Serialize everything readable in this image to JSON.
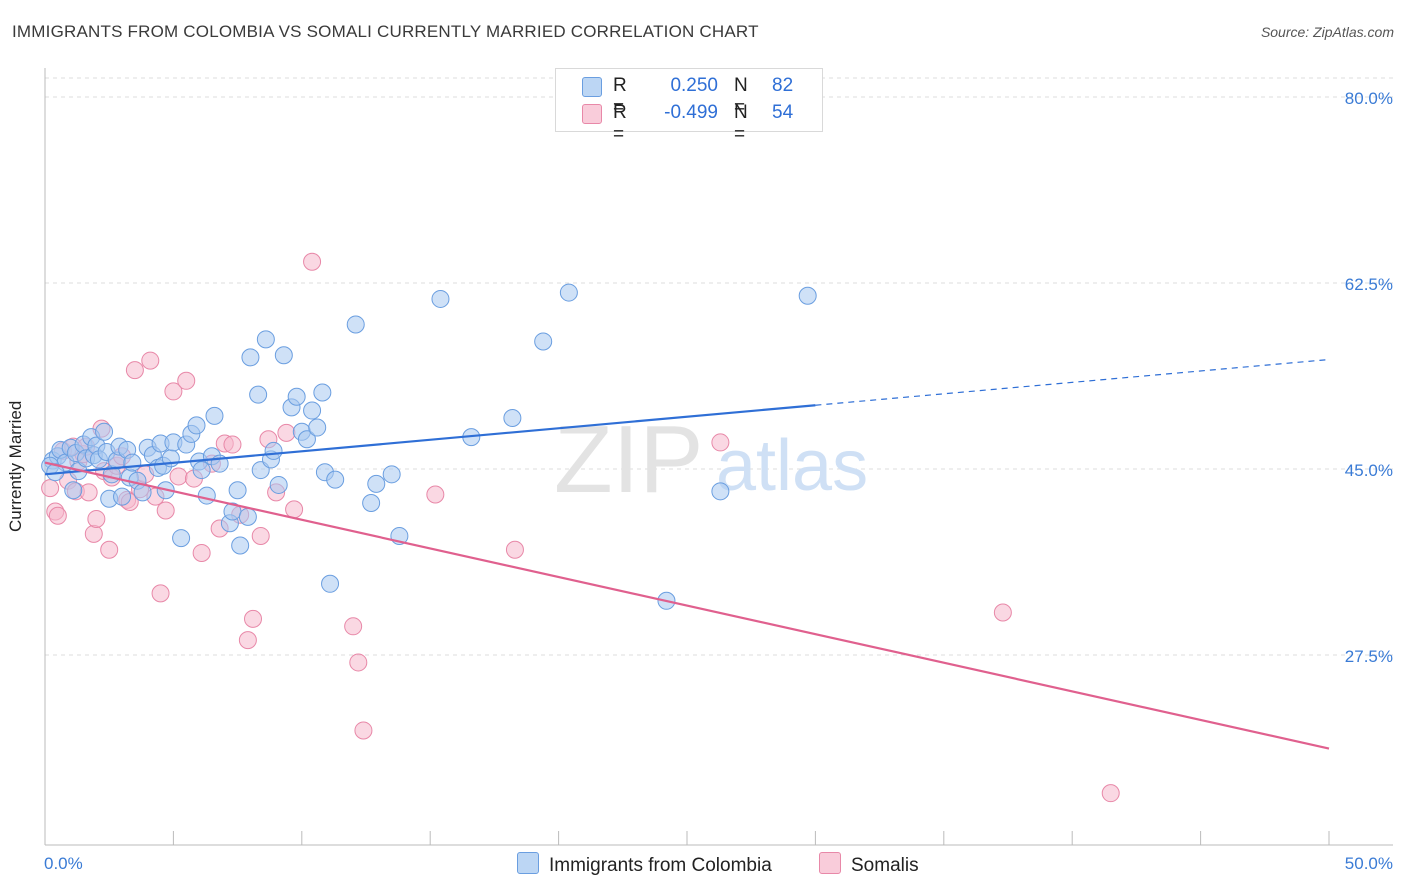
{
  "header": {
    "title": "IMMIGRANTS FROM COLOMBIA VS SOMALI CURRENTLY MARRIED CORRELATION CHART",
    "source": "Source: ZipAtlas.com"
  },
  "watermark": {
    "zip": "ZIP",
    "atlas": "atlas"
  },
  "stats_legend": {
    "rows": [
      {
        "r_label": "R =",
        "r_value": "0.250",
        "n_label": "N =",
        "n_value": "82",
        "color": "#a8c8f0"
      },
      {
        "r_label": "R =",
        "r_value": "-0.499",
        "n_label": "N =",
        "n_value": "54",
        "color": "#f6b8cc"
      }
    ]
  },
  "series_legend": [
    {
      "label": "Immigrants from Colombia",
      "color": "#a8c8f0"
    },
    {
      "label": "Somalis",
      "color": "#f6b8cc"
    }
  ],
  "colors": {
    "blue_fill": "#a8c8f0",
    "blue_stroke": "#6a9ee0",
    "blue_line": "#2f6fd6",
    "pink_fill": "#f6b8cc",
    "pink_stroke": "#e888a8",
    "pink_line": "#e0608e",
    "tick_text": "#3a7bd5",
    "grid": "#dcdcdc"
  },
  "chart_data": {
    "type": "scatter",
    "title": "IMMIGRANTS FROM COLOMBIA VS SOMALI CURRENTLY MARRIED CORRELATION CHART",
    "xlabel": "",
    "ylabel": "Currently Married",
    "xlim": [
      0,
      50
    ],
    "ylim": [
      10,
      82.5
    ],
    "x_tick_labels": [
      "0.0%",
      "50.0%"
    ],
    "y_ticks": [
      27.5,
      45.0,
      62.5,
      80.0
    ],
    "y_tick_labels": [
      "27.5%",
      "45.0%",
      "62.5%",
      "80.0%"
    ],
    "grid": true,
    "legend": "top-center",
    "series": [
      {
        "name": "Immigrants from Colombia",
        "r": 0.25,
        "n": 82,
        "trend": {
          "x0": 0,
          "y0": 44.5,
          "x1": 30,
          "y1": 51.0,
          "dash_x1": 50,
          "dash_y1": 55.3
        },
        "points": [
          [
            0.3,
            45.8
          ],
          [
            0.5,
            46.2
          ],
          [
            0.6,
            46.8
          ],
          [
            0.8,
            45.6
          ],
          [
            1.0,
            47.0
          ],
          [
            1.1,
            43.0
          ],
          [
            1.2,
            46.5
          ],
          [
            1.3,
            44.8
          ],
          [
            1.5,
            47.3
          ],
          [
            1.6,
            46.0
          ],
          [
            1.8,
            48.0
          ],
          [
            1.9,
            46.3
          ],
          [
            2.0,
            47.2
          ],
          [
            2.1,
            45.9
          ],
          [
            2.3,
            48.5
          ],
          [
            2.4,
            46.6
          ],
          [
            2.5,
            42.2
          ],
          [
            2.6,
            44.5
          ],
          [
            2.8,
            45.8
          ],
          [
            2.9,
            47.1
          ],
          [
            3.0,
            42.4
          ],
          [
            3.2,
            46.8
          ],
          [
            3.3,
            44.2
          ],
          [
            3.4,
            45.6
          ],
          [
            3.6,
            43.9
          ],
          [
            3.8,
            42.8
          ],
          [
            4.0,
            47.0
          ],
          [
            4.2,
            46.3
          ],
          [
            4.4,
            45.1
          ],
          [
            4.5,
            47.4
          ],
          [
            4.6,
            45.3
          ],
          [
            4.7,
            43.0
          ],
          [
            4.9,
            46.0
          ],
          [
            5.0,
            47.5
          ],
          [
            5.3,
            38.5
          ],
          [
            5.5,
            47.3
          ],
          [
            5.7,
            48.3
          ],
          [
            5.9,
            49.1
          ],
          [
            6.0,
            45.7
          ],
          [
            6.1,
            44.9
          ],
          [
            6.3,
            42.5
          ],
          [
            6.5,
            46.2
          ],
          [
            6.6,
            50.0
          ],
          [
            6.8,
            45.5
          ],
          [
            7.2,
            39.9
          ],
          [
            7.3,
            41.0
          ],
          [
            7.5,
            43.0
          ],
          [
            7.6,
            37.8
          ],
          [
            7.9,
            40.5
          ],
          [
            8.0,
            55.5
          ],
          [
            8.3,
            52.0
          ],
          [
            8.4,
            44.9
          ],
          [
            8.6,
            57.2
          ],
          [
            8.8,
            45.9
          ],
          [
            9.1,
            43.5
          ],
          [
            9.3,
            55.7
          ],
          [
            9.6,
            50.8
          ],
          [
            9.8,
            51.8
          ],
          [
            10.0,
            48.5
          ],
          [
            10.2,
            47.8
          ],
          [
            10.4,
            50.5
          ],
          [
            10.6,
            48.9
          ],
          [
            10.8,
            52.2
          ],
          [
            10.9,
            44.7
          ],
          [
            11.1,
            34.2
          ],
          [
            11.3,
            44.0
          ],
          [
            12.1,
            58.6
          ],
          [
            12.7,
            41.8
          ],
          [
            12.9,
            43.6
          ],
          [
            13.5,
            44.5
          ],
          [
            13.8,
            38.7
          ],
          [
            15.4,
            61.0
          ],
          [
            16.6,
            48.0
          ],
          [
            18.2,
            49.8
          ],
          [
            19.4,
            57.0
          ],
          [
            20.4,
            61.6
          ],
          [
            24.2,
            32.6
          ],
          [
            26.3,
            42.9
          ],
          [
            29.7,
            61.3
          ],
          [
            0.2,
            45.3
          ],
          [
            0.4,
            44.7
          ],
          [
            8.9,
            46.7
          ]
        ]
      },
      {
        "name": "Somalis",
        "r": -0.499,
        "n": 54,
        "trend": {
          "x0": 0,
          "y0": 45.6,
          "x1": 50,
          "y1": 18.7
        },
        "points": [
          [
            0.2,
            43.2
          ],
          [
            0.4,
            41.0
          ],
          [
            0.5,
            40.6
          ],
          [
            0.7,
            46.7
          ],
          [
            0.9,
            43.9
          ],
          [
            1.1,
            47.1
          ],
          [
            1.2,
            42.9
          ],
          [
            1.3,
            45.7
          ],
          [
            1.5,
            46.4
          ],
          [
            1.6,
            47.1
          ],
          [
            1.7,
            42.8
          ],
          [
            1.9,
            38.9
          ],
          [
            2.0,
            40.3
          ],
          [
            2.2,
            48.8
          ],
          [
            2.3,
            44.8
          ],
          [
            2.5,
            37.4
          ],
          [
            2.6,
            44.2
          ],
          [
            2.8,
            45.3
          ],
          [
            3.0,
            46.2
          ],
          [
            3.2,
            42.1
          ],
          [
            3.3,
            41.9
          ],
          [
            3.5,
            54.3
          ],
          [
            3.7,
            43.1
          ],
          [
            3.9,
            44.5
          ],
          [
            4.1,
            55.2
          ],
          [
            4.3,
            42.4
          ],
          [
            4.5,
            33.3
          ],
          [
            4.7,
            41.1
          ],
          [
            5.0,
            52.3
          ],
          [
            5.2,
            44.3
          ],
          [
            5.5,
            53.3
          ],
          [
            5.8,
            44.1
          ],
          [
            6.1,
            37.1
          ],
          [
            6.5,
            45.5
          ],
          [
            6.8,
            39.4
          ],
          [
            7.0,
            47.4
          ],
          [
            7.3,
            47.3
          ],
          [
            7.6,
            40.7
          ],
          [
            7.9,
            28.9
          ],
          [
            8.1,
            30.9
          ],
          [
            8.4,
            38.7
          ],
          [
            8.7,
            47.8
          ],
          [
            9.0,
            42.8
          ],
          [
            9.4,
            48.4
          ],
          [
            9.7,
            41.2
          ],
          [
            10.4,
            64.5
          ],
          [
            12.0,
            30.2
          ],
          [
            12.2,
            26.8
          ],
          [
            12.4,
            20.4
          ],
          [
            15.2,
            42.6
          ],
          [
            18.3,
            37.4
          ],
          [
            26.3,
            47.5
          ],
          [
            37.3,
            31.5
          ],
          [
            41.5,
            14.5
          ]
        ]
      }
    ]
  }
}
